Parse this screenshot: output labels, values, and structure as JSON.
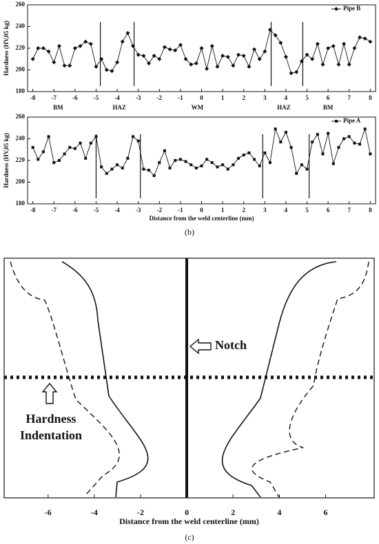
{
  "chart_data": [
    {
      "type": "line",
      "ylabel": "Hardness (HV,05 kg)",
      "x": [
        -8,
        -7.75,
        -7.5,
        -7.25,
        -7,
        -6.75,
        -6.5,
        -6.25,
        -6,
        -5.75,
        -5.5,
        -5.25,
        -5,
        -4.75,
        -4.5,
        -4.25,
        -4,
        -3.75,
        -3.5,
        -3.25,
        -3,
        -2.75,
        -2.5,
        -2.25,
        -2,
        -1.75,
        -1.5,
        -1.25,
        -1,
        -0.75,
        -0.5,
        -0.25,
        0,
        0.25,
        0.5,
        0.75,
        1,
        1.25,
        1.5,
        1.75,
        2,
        2.25,
        2.5,
        2.75,
        3,
        3.25,
        3.5,
        3.75,
        4,
        4.25,
        4.5,
        4.75,
        5,
        5.25,
        5.5,
        5.75,
        6,
        6.25,
        6.5,
        6.75,
        7,
        7.25,
        7.5,
        7.75,
        8
      ],
      "series": [
        {
          "name": "Pipe B",
          "color": "#111111",
          "marker": "diamond",
          "values": [
            210,
            220,
            220,
            217,
            207,
            222,
            204,
            204,
            220,
            222,
            226,
            224,
            203,
            210,
            200,
            199,
            207,
            226,
            234,
            222,
            214,
            213,
            206,
            213,
            210,
            221,
            219,
            218,
            223,
            210,
            205,
            206,
            220,
            201,
            222,
            203,
            213,
            212,
            204,
            214,
            213,
            203,
            219,
            210,
            217,
            237,
            232,
            225,
            212,
            197,
            198,
            208,
            214,
            210,
            224,
            205,
            220,
            222,
            205,
            224,
            205,
            220,
            230,
            229,
            226
          ]
        }
      ],
      "boundaries": [
        -4.8,
        -3.2,
        3.3,
        4.8
      ],
      "regions": [
        "BM",
        "HAZ",
        "WM",
        "HAZ",
        "BM"
      ],
      "xlim": [
        -8.25,
        8.25
      ],
      "xticks": [
        -8,
        -7,
        -6,
        -5,
        -4,
        -3,
        -2,
        -1,
        0,
        1,
        2,
        3,
        4,
        5,
        6,
        7,
        8
      ],
      "ylim": [
        180,
        260
      ],
      "yticks": [
        180,
        200,
        220,
        240,
        260
      ]
    },
    {
      "type": "line",
      "ylabel": "Hardness (HV,05 kg)",
      "xlabel": "Distance from the weld centerline (mm)",
      "caption": "(b)",
      "x": [
        -8,
        -7.75,
        -7.5,
        -7.25,
        -7,
        -6.75,
        -6.5,
        -6.25,
        -6,
        -5.75,
        -5.5,
        -5.25,
        -5,
        -4.75,
        -4.5,
        -4.25,
        -4,
        -3.75,
        -3.5,
        -3.25,
        -3,
        -2.75,
        -2.5,
        -2.25,
        -2,
        -1.75,
        -1.5,
        -1.25,
        -1,
        -0.75,
        -0.5,
        -0.25,
        0,
        0.25,
        0.5,
        0.75,
        1,
        1.25,
        1.5,
        1.75,
        2,
        2.25,
        2.5,
        2.75,
        3,
        3.25,
        3.5,
        3.75,
        4,
        4.25,
        4.5,
        4.75,
        5,
        5.25,
        5.5,
        5.75,
        6,
        6.25,
        6.5,
        6.75,
        7,
        7.25,
        7.5,
        7.75,
        8
      ],
      "series": [
        {
          "name": "Pipe A",
          "color": "#111111",
          "marker": "square",
          "values": [
            232,
            221,
            228,
            242,
            218,
            220,
            226,
            232,
            231,
            236,
            222,
            236,
            242,
            214,
            208,
            212,
            216,
            213,
            222,
            242,
            238,
            212,
            211,
            206,
            218,
            229,
            213,
            220,
            221,
            219,
            216,
            213,
            215,
            221,
            218,
            214,
            216,
            212,
            216,
            222,
            225,
            227,
            221,
            215,
            227,
            218,
            249,
            237,
            246,
            232,
            208,
            216,
            212,
            237,
            244,
            226,
            245,
            217,
            232,
            240,
            242,
            236,
            235,
            249,
            226
          ]
        }
      ],
      "boundaries": [
        -5,
        -2.9,
        2.9,
        5.1
      ],
      "xlim": [
        -8.25,
        8.25
      ],
      "xticks": [
        -8,
        -7,
        -6,
        -5,
        -4,
        -3,
        -2,
        -1,
        0,
        1,
        2,
        3,
        4,
        5,
        6,
        7,
        8
      ],
      "ylim": [
        180,
        260
      ],
      "yticks": [
        180,
        200,
        220,
        240,
        260
      ]
    },
    {
      "type": "diagram",
      "xlabel": "Distance from the weld centerline (mm)",
      "caption": "(c)",
      "annotations": [
        "Notch",
        "Hardness",
        "Indentation"
      ],
      "xlim": [
        -7.9,
        8.1
      ],
      "xticks": [
        -6,
        -4,
        -2,
        0,
        2,
        4,
        6
      ]
    }
  ]
}
